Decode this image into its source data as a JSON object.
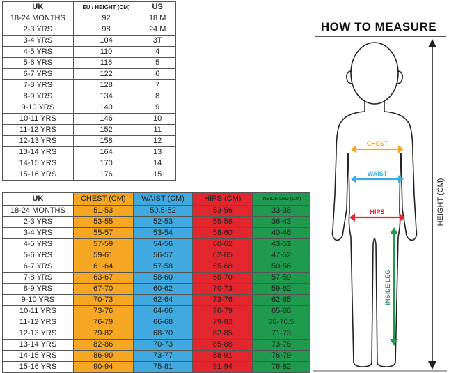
{
  "conversion_table": {
    "headers": [
      "UK",
      "EU / HEIGHT (CM)",
      "US"
    ],
    "rows": [
      [
        "18-24 MONTHS",
        "92",
        "18 M"
      ],
      [
        "2-3 YRS",
        "98",
        "24 M"
      ],
      [
        "3-4 YRS",
        "104",
        "3T"
      ],
      [
        "4-5 YRS",
        "110",
        "4"
      ],
      [
        "5-6 YRS",
        "116",
        "5"
      ],
      [
        "6-7 YRS",
        "122",
        "6"
      ],
      [
        "7-8 YRS",
        "128",
        "7"
      ],
      [
        "8-9 YRS",
        "134",
        "8"
      ],
      [
        "9-10 YRS",
        "140",
        "9"
      ],
      [
        "10-11 YRS",
        "146",
        "10"
      ],
      [
        "11-12 YRS",
        "152",
        "11"
      ],
      [
        "12-13 YRS",
        "158",
        "12"
      ],
      [
        "13-14 YRS",
        "164",
        "13"
      ],
      [
        "14-15 YRS",
        "170",
        "14"
      ],
      [
        "15-16 YRS",
        "176",
        "15"
      ]
    ]
  },
  "measurement_table": {
    "headers": [
      "UK",
      "CHEST (CM)",
      "WAIST (CM)",
      "HIPS (CM)",
      "INSIDE LEG (CM)"
    ],
    "rows": [
      [
        "18-24 MONTHS",
        "51-53",
        "50.5-52",
        "53-56",
        "33-38"
      ],
      [
        "2-3 YRS",
        "53-55",
        "52-53",
        "55-58",
        "36-43"
      ],
      [
        "3-4 YRS",
        "55-57",
        "53-54",
        "58-60",
        "40-46"
      ],
      [
        "4-5 YRS",
        "57-59",
        "54-56",
        "60-62",
        "43-51"
      ],
      [
        "5-6 YRS",
        "59-61",
        "56-57",
        "62-65",
        "47-52"
      ],
      [
        "6-7 YRS",
        "61-64",
        "57-58",
        "65-68",
        "50-56"
      ],
      [
        "7-8 YRS",
        "63-67",
        "58-60",
        "68-70",
        "57-59"
      ],
      [
        "8-9 YRS",
        "67-70",
        "60-62",
        "70-73",
        "59-62"
      ],
      [
        "9-10 YRS",
        "70-73",
        "62-64",
        "73-76",
        "62-65"
      ],
      [
        "10-11 YRS",
        "73-76",
        "64-66",
        "76-79",
        "65-68"
      ],
      [
        "11-12 YRS",
        "76-79",
        "66-68",
        "79-82",
        "68-70.5"
      ],
      [
        "12-13 YRS",
        "79-82",
        "68-70",
        "82-85",
        "71-73"
      ],
      [
        "13-14 YRS",
        "82-86",
        "70-73",
        "85-88",
        "73-76"
      ],
      [
        "14-15 YRS",
        "86-90",
        "73-77",
        "88-91",
        "76-79"
      ],
      [
        "15-16 YRS",
        "90-94",
        "75-81",
        "91-94",
        "76-82"
      ]
    ]
  },
  "how_to_measure": {
    "title": "HOW TO MEASURE",
    "labels": {
      "chest": "CHEST",
      "waist": "WAIST",
      "hips": "HIPS",
      "inside_leg": "INSIDE LEG",
      "height": "HEIGHT (CM)"
    }
  },
  "colors": {
    "chest": "#f5a623",
    "waist": "#3fa9e0",
    "hips": "#e3272f",
    "inside_leg": "#1f9a4f"
  }
}
